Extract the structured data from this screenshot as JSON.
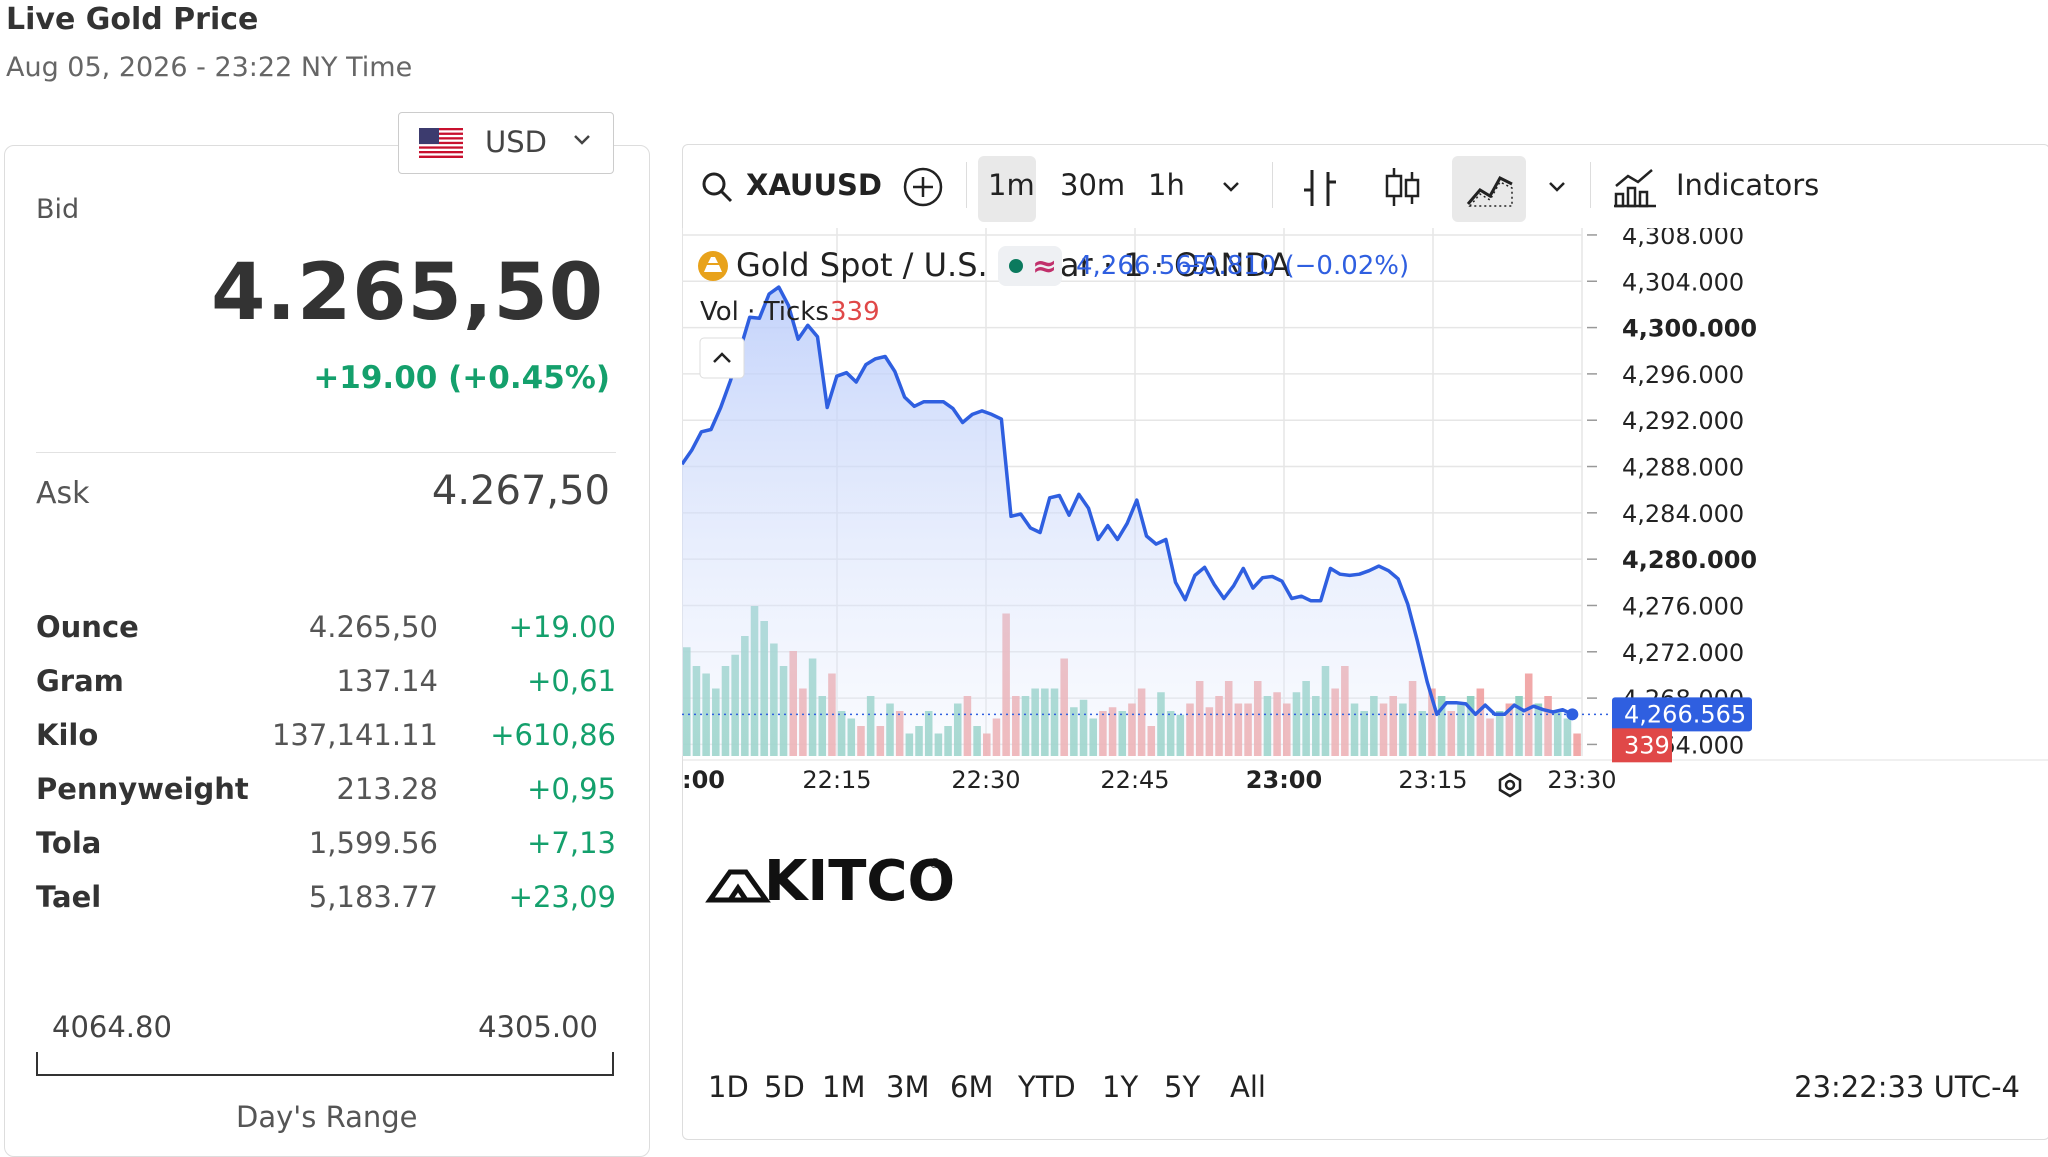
{
  "header": {
    "title": "Live Gold Price",
    "subtitle": "Aug 05, 2026 - 23:22 NY Time"
  },
  "currency": {
    "code": "USD",
    "flag_icon": "us-flag-icon"
  },
  "quote": {
    "bid_label": "Bid",
    "bid": "4.265,50",
    "change": "+19.00 (+0.45%)",
    "ask_label": "Ask",
    "ask": "4.267,50"
  },
  "units": [
    {
      "unit": "Ounce",
      "price": "4.265,50",
      "change": "+19.00"
    },
    {
      "unit": "Gram",
      "price": "137.14",
      "change": "+0,61"
    },
    {
      "unit": "Kilo",
      "price": "137,141.11",
      "change": "+610,86"
    },
    {
      "unit": "Pennyweight",
      "price": "213.28",
      "change": "+0,95"
    },
    {
      "unit": "Tola",
      "price": "1,599.56",
      "change": "+7,13"
    },
    {
      "unit": "Tael",
      "price": "5,183.77",
      "change": "+23,09"
    }
  ],
  "day_range": {
    "low": "4064.80",
    "high": "4305.00",
    "label": "Day's Range"
  },
  "toolbar": {
    "symbol": "XAUUSD",
    "intervals": [
      "1m",
      "30m",
      "1h"
    ],
    "active_interval": "1m",
    "indicators_label": "Indicators"
  },
  "legend": {
    "name": "Gold Spot / U.S. Dollar · 1 · OANDA",
    "wave_glyph": "≈",
    "last": "4,266.565",
    "change": "−0.810 (−0.02%)",
    "vol_label": "Vol · Ticks",
    "vol_value": "339"
  },
  "watermark": "KITCO",
  "watermark_reg": "®",
  "last_price_tag": "4,266.565",
  "last_volume_tag": "339",
  "ranges": [
    "1D",
    "5D",
    "1M",
    "3M",
    "6M",
    "YTD",
    "1Y",
    "5Y",
    "All"
  ],
  "clock": "23:22:33 UTC-4",
  "colors": {
    "line": "#2f5fe0",
    "area": "#c9d6fb",
    "up_volume": "#7fcab9",
    "down_volume": "#ef9a9a",
    "positive": "#14a06c",
    "negative": "#e04848"
  },
  "chart_data": {
    "type": "line",
    "title": "Gold Spot / U.S. Dollar · 1 · OANDA",
    "x_ticks": [
      ":00",
      "22:15",
      "22:30",
      "22:45",
      "23:00",
      "23:15",
      "23:30"
    ],
    "bold_x_ticks": [
      ":00",
      "23:00"
    ],
    "y_ticks": [
      {
        "label": "4,308.000",
        "value": 4308
      },
      {
        "label": "4,304.000",
        "value": 4304
      },
      {
        "label": "4,300.000",
        "value": 4300
      },
      {
        "label": "4,296.000",
        "value": 4296
      },
      {
        "label": "4,292.000",
        "value": 4292
      },
      {
        "label": "4,288.000",
        "value": 4288
      },
      {
        "label": "4,284.000",
        "value": 4284
      },
      {
        "label": "4,280.000",
        "value": 4280
      },
      {
        "label": "4,276.000",
        "value": 4276
      },
      {
        "label": "4,272.000",
        "value": 4272
      },
      {
        "label": "4,268.000",
        "value": 4268
      },
      {
        "label": "4,264.000",
        "value": 4264
      }
    ],
    "bold_y_ticks": [
      4300,
      4280
    ],
    "ylim": [
      4263.0,
      4308.6
    ],
    "xlim": [
      0,
      93
    ],
    "series": [
      {
        "values": [
          4288.2,
          4289.4,
          4291.0,
          4291.2,
          4293.1,
          4295.4,
          4298.1,
          4300.9,
          4300.8,
          4302.9,
          4303.5,
          4301.9,
          4299.0,
          4300.2,
          4299.2,
          4293.1,
          4295.8,
          4296.1,
          4295.3,
          4296.8,
          4297.3,
          4297.5,
          4296.2,
          4294.0,
          4293.2,
          4293.6,
          4293.6,
          4293.6,
          4293.0,
          4291.8,
          4292.5,
          4292.8,
          4292.5,
          4292.1,
          4283.7,
          4283.9,
          4282.7,
          4282.3,
          4285.3,
          4285.5,
          4283.8,
          4285.6,
          4284.4,
          4281.7,
          4282.9,
          4281.7,
          4283.1,
          4285.1,
          4282.0,
          4281.3,
          4281.7,
          4278.0,
          4276.5,
          4278.6,
          4279.3,
          4277.8,
          4276.6,
          4277.7,
          4279.2,
          4277.5,
          4278.4,
          4278.5,
          4278.1,
          4276.6,
          4276.8,
          4276.4,
          4276.4,
          4279.2,
          4278.7,
          4278.6,
          4278.7,
          4279.0,
          4279.4,
          4279.0,
          4278.3,
          4276.1,
          4272.9,
          4269.4,
          4266.6,
          4267.6,
          4267.6,
          4267.5,
          4266.6,
          4267.4,
          4266.6,
          4266.6,
          4267.4,
          4266.9,
          4267.3,
          4267.0,
          4266.8,
          4267.0,
          4266.6
        ]
      }
    ],
    "volume": [
      {
        "v": 145,
        "up": true
      },
      {
        "v": 120,
        "up": true
      },
      {
        "v": 110,
        "up": true
      },
      {
        "v": 90,
        "up": true
      },
      {
        "v": 120,
        "up": true
      },
      {
        "v": 135,
        "up": true
      },
      {
        "v": 160,
        "up": true
      },
      {
        "v": 200,
        "up": true
      },
      {
        "v": 180,
        "up": true
      },
      {
        "v": 150,
        "up": true
      },
      {
        "v": 120,
        "up": true
      },
      {
        "v": 140,
        "up": false
      },
      {
        "v": 90,
        "up": false
      },
      {
        "v": 130,
        "up": true
      },
      {
        "v": 80,
        "up": true
      },
      {
        "v": 110,
        "up": false
      },
      {
        "v": 60,
        "up": true
      },
      {
        "v": 50,
        "up": true
      },
      {
        "v": 40,
        "up": false
      },
      {
        "v": 80,
        "up": true
      },
      {
        "v": 40,
        "up": false
      },
      {
        "v": 70,
        "up": true
      },
      {
        "v": 60,
        "up": false
      },
      {
        "v": 30,
        "up": true
      },
      {
        "v": 40,
        "up": true
      },
      {
        "v": 60,
        "up": true
      },
      {
        "v": 30,
        "up": true
      },
      {
        "v": 40,
        "up": true
      },
      {
        "v": 70,
        "up": true
      },
      {
        "v": 80,
        "up": false
      },
      {
        "v": 40,
        "up": true
      },
      {
        "v": 30,
        "up": false
      },
      {
        "v": 50,
        "up": false
      },
      {
        "v": 190,
        "up": false
      },
      {
        "v": 80,
        "up": false
      },
      {
        "v": 80,
        "up": true
      },
      {
        "v": 90,
        "up": true
      },
      {
        "v": 90,
        "up": true
      },
      {
        "v": 90,
        "up": true
      },
      {
        "v": 130,
        "up": false
      },
      {
        "v": 65,
        "up": true
      },
      {
        "v": 75,
        "up": true
      },
      {
        "v": 50,
        "up": true
      },
      {
        "v": 60,
        "up": false
      },
      {
        "v": 65,
        "up": false
      },
      {
        "v": 60,
        "up": true
      },
      {
        "v": 70,
        "up": false
      },
      {
        "v": 90,
        "up": false
      },
      {
        "v": 40,
        "up": false
      },
      {
        "v": 85,
        "up": true
      },
      {
        "v": 60,
        "up": true
      },
      {
        "v": 55,
        "up": true
      },
      {
        "v": 70,
        "up": false
      },
      {
        "v": 100,
        "up": false
      },
      {
        "v": 65,
        "up": false
      },
      {
        "v": 80,
        "up": false
      },
      {
        "v": 100,
        "up": false
      },
      {
        "v": 70,
        "up": false
      },
      {
        "v": 70,
        "up": false
      },
      {
        "v": 100,
        "up": false
      },
      {
        "v": 80,
        "up": true
      },
      {
        "v": 85,
        "up": false
      },
      {
        "v": 70,
        "up": false
      },
      {
        "v": 85,
        "up": true
      },
      {
        "v": 100,
        "up": true
      },
      {
        "v": 80,
        "up": true
      },
      {
        "v": 120,
        "up": true
      },
      {
        "v": 90,
        "up": false
      },
      {
        "v": 120,
        "up": false
      },
      {
        "v": 70,
        "up": true
      },
      {
        "v": 60,
        "up": true
      },
      {
        "v": 80,
        "up": true
      },
      {
        "v": 70,
        "up": false
      },
      {
        "v": 80,
        "up": false
      },
      {
        "v": 70,
        "up": true
      },
      {
        "v": 100,
        "up": false
      },
      {
        "v": 60,
        "up": true
      },
      {
        "v": 90,
        "up": false
      },
      {
        "v": 80,
        "up": true
      },
      {
        "v": 60,
        "up": false
      },
      {
        "v": 70,
        "up": true
      },
      {
        "v": 80,
        "up": true
      },
      {
        "v": 90,
        "up": false
      },
      {
        "v": 50,
        "up": false
      },
      {
        "v": 60,
        "up": true
      },
      {
        "v": 70,
        "up": false
      },
      {
        "v": 80,
        "up": true
      },
      {
        "v": 110,
        "up": false
      },
      {
        "v": 70,
        "up": true
      },
      {
        "v": 80,
        "up": false
      },
      {
        "v": 60,
        "up": true
      },
      {
        "v": 50,
        "up": true
      },
      {
        "v": 30,
        "up": false
      }
    ],
    "grid": true,
    "legend_position": "top-left"
  }
}
